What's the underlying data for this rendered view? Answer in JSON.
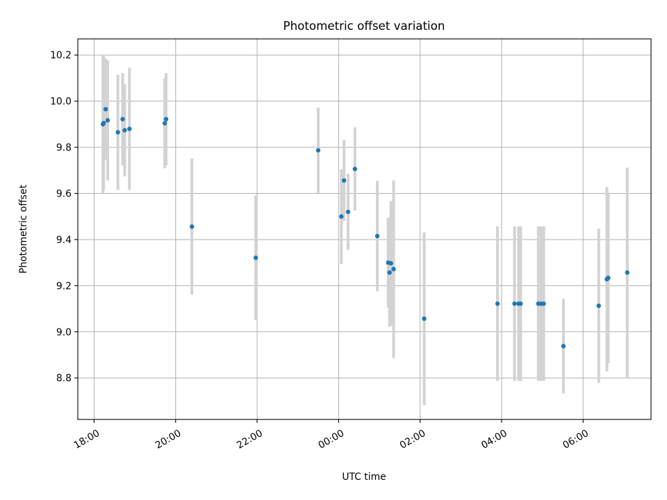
{
  "chart_data": {
    "type": "scatter",
    "title": "Photometric offset variation",
    "xlabel": "UTC time",
    "ylabel": "Photometric offset",
    "x_axis": {
      "kind": "time",
      "range": [
        "17:36",
        "07:40"
      ],
      "ticks": [
        {
          "t": "18:00",
          "label": "18:00"
        },
        {
          "t": "20:00",
          "label": "20:00"
        },
        {
          "t": "22:00",
          "label": "22:00"
        },
        {
          "t": "00:00",
          "label": "00:00"
        },
        {
          "t": "02:00",
          "label": "02:00"
        },
        {
          "t": "04:00",
          "label": "04:00"
        },
        {
          "t": "06:00",
          "label": "06:00"
        }
      ]
    },
    "y_axis": {
      "range": [
        8.62,
        10.27
      ],
      "ticks": [
        "8.8",
        "9.0",
        "9.2",
        "9.4",
        "9.6",
        "9.8",
        "10.0",
        "10.2"
      ]
    },
    "grid": true,
    "marker_color": "#1f77b4",
    "errorbar_color": "#d3d3d3",
    "points": [
      {
        "t": "18:13",
        "y": 9.9,
        "err": 0.3
      },
      {
        "t": "18:14",
        "y": 9.905,
        "err": 0.29
      },
      {
        "t": "18:17",
        "y": 9.965,
        "err": 0.22
      },
      {
        "t": "18:20",
        "y": 9.917,
        "err": 0.26
      },
      {
        "t": "18:35",
        "y": 9.865,
        "err": 0.25
      },
      {
        "t": "18:42",
        "y": 9.922,
        "err": 0.2
      },
      {
        "t": "18:45",
        "y": 9.874,
        "err": 0.2
      },
      {
        "t": "18:52",
        "y": 9.88,
        "err": 0.265
      },
      {
        "t": "19:44",
        "y": 9.904,
        "err": 0.195
      },
      {
        "t": "19:46",
        "y": 9.922,
        "err": 0.2
      },
      {
        "t": "20:24",
        "y": 9.456,
        "err": 0.295
      },
      {
        "t": "21:58",
        "y": 9.321,
        "err": 0.27
      },
      {
        "t": "23:30",
        "y": 9.787,
        "err": 0.185
      },
      {
        "t": "00:04",
        "y": 9.5,
        "err": 0.205
      },
      {
        "t": "00:08",
        "y": 9.656,
        "err": 0.175
      },
      {
        "t": "00:14",
        "y": 9.52,
        "err": 0.165
      },
      {
        "t": "00:24",
        "y": 9.706,
        "err": 0.18
      },
      {
        "t": "00:57",
        "y": 9.415,
        "err": 0.24
      },
      {
        "t": "01:13",
        "y": 9.3,
        "err": 0.195
      },
      {
        "t": "01:15",
        "y": 9.257,
        "err": 0.235
      },
      {
        "t": "01:17",
        "y": 9.297,
        "err": 0.27
      },
      {
        "t": "01:21",
        "y": 9.272,
        "err": 0.385
      },
      {
        "t": "02:06",
        "y": 9.057,
        "err": 0.375
      },
      {
        "t": "03:54",
        "y": 9.122,
        "err": 0.335
      },
      {
        "t": "04:19",
        "y": 9.122,
        "err": 0.335
      },
      {
        "t": "04:25",
        "y": 9.122,
        "err": 0.335
      },
      {
        "t": "04:28",
        "y": 9.122,
        "err": 0.335
      },
      {
        "t": "04:54",
        "y": 9.122,
        "err": 0.335
      },
      {
        "t": "04:58",
        "y": 9.122,
        "err": 0.335
      },
      {
        "t": "05:02",
        "y": 9.122,
        "err": 0.335
      },
      {
        "t": "05:31",
        "y": 8.938,
        "err": 0.205
      },
      {
        "t": "06:23",
        "y": 9.113,
        "err": 0.335
      },
      {
        "t": "06:35",
        "y": 9.228,
        "err": 0.4
      },
      {
        "t": "06:37",
        "y": 9.234,
        "err": 0.37
      },
      {
        "t": "07:05",
        "y": 9.257,
        "err": 0.455
      }
    ]
  }
}
